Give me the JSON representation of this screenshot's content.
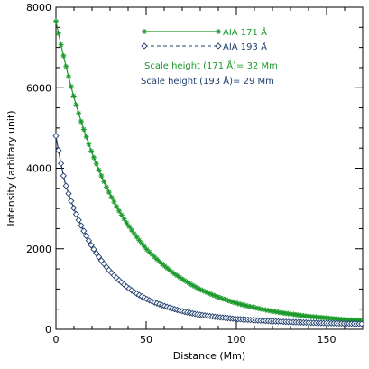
{
  "colors": {
    "aia171": "#1a9a2a",
    "aia193": "#1f3f6e",
    "axis": "#000000"
  },
  "chart_data": {
    "type": "scatter",
    "xlabel": "Distance (Mm)",
    "ylabel": "Intensity (arbitary unit)",
    "xlim": [
      0,
      170
    ],
    "ylim": [
      0,
      8000
    ],
    "x_ticks": [
      0,
      50,
      100,
      150
    ],
    "y_ticks": [
      0,
      2000,
      4000,
      6000,
      8000
    ],
    "legend_position": "top-center",
    "series": [
      {
        "name": "AIA 171 Å",
        "marker": "asterisk",
        "line": "solid",
        "color": "#1a9a2a",
        "x": [
          0,
          5,
          10,
          15,
          20,
          25,
          30,
          35,
          40,
          45,
          50,
          55,
          60,
          65,
          70,
          75,
          80,
          85,
          90,
          95,
          100,
          105,
          110,
          115,
          120,
          125,
          130,
          135,
          140,
          145,
          150,
          155,
          160,
          165,
          170
        ],
        "values": [
          7650,
          6640,
          5760,
          5020,
          4380,
          3830,
          3350,
          2940,
          2590,
          2280,
          2000,
          1780,
          1580,
          1400,
          1250,
          1110,
          990,
          890,
          800,
          720,
          650,
          590,
          540,
          490,
          450,
          410,
          380,
          350,
          320,
          300,
          280,
          260,
          240,
          230,
          215
        ]
      },
      {
        "name": "AIA 193 Å",
        "marker": "diamond",
        "line": "dashed",
        "color": "#1f3f6e",
        "x": [
          0,
          5,
          10,
          15,
          20,
          25,
          30,
          35,
          40,
          45,
          50,
          55,
          60,
          65,
          70,
          75,
          80,
          85,
          90,
          95,
          100,
          105,
          110,
          115,
          120,
          125,
          130,
          135,
          140,
          145,
          150,
          155,
          160,
          165,
          170
        ],
        "values": [
          4800,
          3650,
          2990,
          2480,
          2060,
          1720,
          1440,
          1220,
          1030,
          880,
          760,
          660,
          580,
          510,
          450,
          400,
          360,
          330,
          300,
          280,
          255,
          240,
          225,
          210,
          200,
          190,
          180,
          172,
          165,
          158,
          152,
          147,
          142,
          138,
          135
        ]
      }
    ],
    "annotations": [
      "Scale height (171 Å)= 32 Mm",
      "Scale height (193 Å)= 29 Mm"
    ]
  }
}
